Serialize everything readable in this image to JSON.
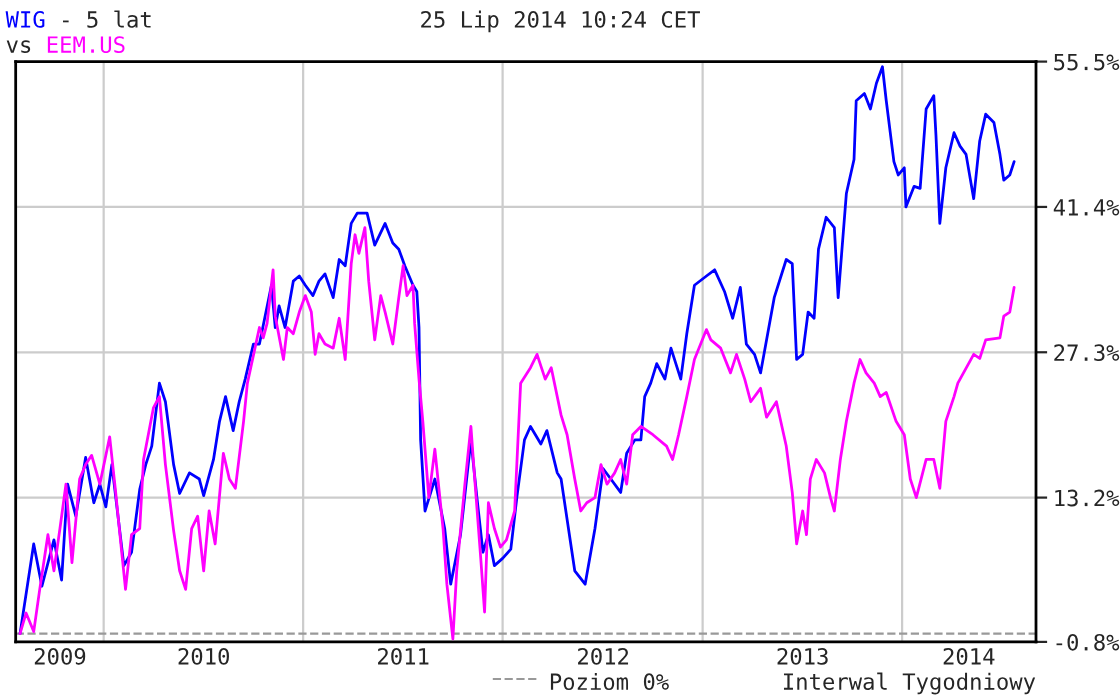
{
  "chart_data": {
    "type": "line",
    "title": "25 Lip 2014 10:24 CET",
    "series": [
      {
        "name": "WIG",
        "color": "#0000ff",
        "x": [
          "2009-08-01",
          "2009-08-26",
          "2009-09-10",
          "2009-10-02",
          "2009-10-16",
          "2009-10-27",
          "2009-11-11",
          "2009-11-29",
          "2009-12-14",
          "2009-12-25",
          "2010-01-05",
          "2010-01-16",
          "2010-02-07",
          "2010-02-21",
          "2010-03-08",
          "2010-03-19",
          "2010-03-30",
          "2010-04-13",
          "2010-04-24",
          "2010-05-09",
          "2010-05-20",
          "2010-06-07",
          "2010-06-25",
          "2010-07-03",
          "2010-07-21",
          "2010-08-01",
          "2010-08-12",
          "2010-08-26",
          "2010-09-06",
          "2010-09-17",
          "2010-10-02",
          "2010-10-13",
          "2010-11-04",
          "2010-11-11",
          "2010-11-18",
          "2010-11-29",
          "2010-12-14",
          "2010-12-25",
          "2011-01-05",
          "2011-01-19",
          "2011-01-30",
          "2011-02-10",
          "2011-02-25",
          "2011-03-08",
          "2011-03-19",
          "2011-03-30",
          "2011-04-10",
          "2011-04-28",
          "2011-05-12",
          "2011-05-31",
          "2011-06-14",
          "2011-06-25",
          "2011-07-06",
          "2011-07-21",
          "2011-07-28",
          "2011-08-01",
          "2011-08-04",
          "2011-08-12",
          "2011-08-30",
          "2011-09-17",
          "2011-09-28",
          "2011-10-16",
          "2011-11-04",
          "2011-11-15",
          "2011-11-26",
          "2011-12-06",
          "2011-12-17",
          "2012-01-01",
          "2012-01-16",
          "2012-01-27",
          "2012-02-10",
          "2012-02-21",
          "2012-03-11",
          "2012-03-22",
          "2012-04-10",
          "2012-04-17",
          "2012-05-12",
          "2012-05-31",
          "2012-06-18",
          "2012-07-03",
          "2012-07-17",
          "2012-08-04",
          "2012-08-15",
          "2012-08-30",
          "2012-09-10",
          "2012-09-17",
          "2012-09-28",
          "2012-10-09",
          "2012-10-24",
          "2012-11-04",
          "2012-11-22",
          "2012-12-03",
          "2012-12-17",
          "2013-01-08",
          "2013-01-23",
          "2013-02-10",
          "2013-02-25",
          "2013-03-11",
          "2013-03-22",
          "2013-04-06",
          "2013-04-17",
          "2013-05-12",
          "2013-06-03",
          "2013-06-14",
          "2013-06-22",
          "2013-07-03",
          "2013-07-13",
          "2013-07-24",
          "2013-08-01",
          "2013-08-15",
          "2013-08-30",
          "2013-09-06",
          "2013-09-21",
          "2013-10-05",
          "2013-10-09",
          "2013-10-24",
          "2013-11-04",
          "2013-11-15",
          "2013-11-26",
          "2013-12-03",
          "2013-12-17",
          "2013-12-25",
          "2014-01-05",
          "2014-01-08",
          "2014-01-23",
          "2014-02-03",
          "2014-02-14",
          "2014-02-28",
          "2014-03-04",
          "2014-03-11",
          "2014-03-22",
          "2014-04-06",
          "2014-04-17",
          "2014-04-28",
          "2014-05-12",
          "2014-05-23",
          "2014-06-03",
          "2014-06-18",
          "2014-06-29",
          "2014-07-06",
          "2014-07-17",
          "2014-07-25"
        ],
        "values": [
          0,
          8.7,
          4.6,
          9.1,
          5.2,
          14.5,
          11.4,
          17.1,
          12.7,
          14.5,
          12.3,
          16.4,
          6.6,
          7.9,
          14.0,
          16.4,
          18.2,
          24.3,
          22.5,
          16.4,
          13.6,
          15.6,
          15.0,
          13.4,
          16.9,
          20.6,
          23.0,
          19.7,
          22.5,
          24.7,
          28.1,
          28.1,
          33.8,
          29.7,
          31.8,
          29.7,
          34.2,
          34.7,
          33.8,
          32.8,
          34.2,
          34.9,
          32.6,
          36.3,
          35.7,
          39.8,
          40.8,
          40.8,
          37.7,
          39.8,
          37.9,
          37.3,
          35.7,
          33.8,
          33.2,
          29.7,
          18.8,
          11.9,
          15.0,
          10.2,
          4.8,
          9.6,
          18.8,
          13.2,
          7.9,
          9.6,
          6.6,
          7.3,
          8.2,
          13.2,
          18.8,
          20.1,
          18.4,
          19.7,
          15.6,
          15.0,
          6.1,
          4.8,
          10.2,
          16.0,
          15.0,
          13.7,
          17.5,
          18.8,
          18.8,
          23.0,
          24.3,
          26.2,
          24.7,
          27.7,
          24.7,
          29.1,
          33.8,
          34.7,
          35.3,
          33.2,
          30.6,
          33.6,
          28.1,
          27.1,
          25.3,
          32.6,
          36.3,
          35.9,
          26.6,
          27.1,
          31.2,
          30.6,
          37.3,
          40.4,
          39.4,
          32.6,
          42.7,
          46.0,
          51.7,
          52.4,
          50.9,
          53.4,
          55.0,
          51.7,
          45.8,
          44.5,
          45.2,
          41.4,
          43.4,
          43.2,
          50.9,
          52.2,
          48.3,
          39.8,
          45.2,
          48.6,
          47.3,
          46.5,
          42.2,
          47.8,
          50.4,
          49.6,
          46.5,
          44.0,
          44.5,
          45.8
        ]
      },
      {
        "name": "EEM.US",
        "color": "#ff00ff",
        "x": [
          "2009-08-01",
          "2009-08-12",
          "2009-08-26",
          "2009-09-06",
          "2009-09-21",
          "2009-10-02",
          "2009-10-13",
          "2009-10-24",
          "2009-11-04",
          "2009-11-18",
          "2009-11-29",
          "2009-12-10",
          "2009-12-25",
          "2010-01-12",
          "2010-01-23",
          "2010-02-03",
          "2010-02-10",
          "2010-02-21",
          "2010-03-08",
          "2010-03-15",
          "2010-04-02",
          "2010-04-13",
          "2010-04-24",
          "2010-05-09",
          "2010-05-20",
          "2010-05-31",
          "2010-06-11",
          "2010-06-22",
          "2010-07-03",
          "2010-07-13",
          "2010-07-24",
          "2010-08-08",
          "2010-08-19",
          "2010-08-30",
          "2010-09-14",
          "2010-09-21",
          "2010-10-13",
          "2010-10-20",
          "2010-10-27",
          "2010-11-07",
          "2010-11-11",
          "2010-11-26",
          "2010-12-03",
          "2010-12-14",
          "2010-12-25",
          "2011-01-05",
          "2011-01-16",
          "2011-01-23",
          "2011-01-30",
          "2011-02-10",
          "2011-02-25",
          "2011-03-08",
          "2011-03-19",
          "2011-03-30",
          "2011-04-06",
          "2011-04-13",
          "2011-04-24",
          "2011-05-01",
          "2011-05-12",
          "2011-05-23",
          "2011-05-31",
          "2011-06-14",
          "2011-06-25",
          "2011-07-03",
          "2011-07-10",
          "2011-07-21",
          "2011-07-24",
          "2011-08-01",
          "2011-08-08",
          "2011-08-19",
          "2011-08-30",
          "2011-09-14",
          "2011-09-21",
          "2011-10-02",
          "2011-10-09",
          "2011-10-24",
          "2011-11-04",
          "2011-11-11",
          "2011-11-22",
          "2011-11-29",
          "2011-12-06",
          "2011-12-17",
          "2011-12-28",
          "2012-01-08",
          "2012-01-23",
          "2012-02-03",
          "2012-02-21",
          "2012-03-04",
          "2012-03-19",
          "2012-03-30",
          "2012-04-17",
          "2012-04-28",
          "2012-05-12",
          "2012-05-23",
          "2012-06-03",
          "2012-06-18",
          "2012-06-29",
          "2012-07-10",
          "2012-07-24",
          "2012-08-04",
          "2012-08-15",
          "2012-08-26",
          "2012-09-10",
          "2012-10-02",
          "2012-10-27",
          "2012-11-07",
          "2012-11-18",
          "2012-12-03",
          "2012-12-17",
          "2013-01-08",
          "2013-01-16",
          "2013-02-03",
          "2013-02-21",
          "2013-03-04",
          "2013-03-19",
          "2013-03-30",
          "2013-04-17",
          "2013-04-28",
          "2013-05-16",
          "2013-06-03",
          "2013-06-14",
          "2013-06-22",
          "2013-07-03",
          "2013-07-10",
          "2013-07-17",
          "2013-07-28",
          "2013-08-12",
          "2013-08-23",
          "2013-08-30",
          "2013-09-10",
          "2013-09-21",
          "2013-10-05",
          "2013-10-16",
          "2013-10-27",
          "2013-11-11",
          "2013-11-22",
          "2013-12-03",
          "2013-12-21",
          "2014-01-05",
          "2014-01-16",
          "2014-01-27",
          "2014-02-14",
          "2014-02-28",
          "2014-03-11",
          "2014-03-22",
          "2014-04-06",
          "2014-04-13",
          "2014-05-12",
          "2014-05-23",
          "2014-06-03",
          "2014-06-29",
          "2014-07-06",
          "2014-07-17",
          "2014-07-25"
        ],
        "values": [
          0,
          2.0,
          0.2,
          4.3,
          9.6,
          6.1,
          10.2,
          14.5,
          6.9,
          15.0,
          16.4,
          17.3,
          14.5,
          19.1,
          13.7,
          7.9,
          4.3,
          9.6,
          10.2,
          16.9,
          21.9,
          23.0,
          16.4,
          10.0,
          6.1,
          4.3,
          10.2,
          11.4,
          6.1,
          11.9,
          8.7,
          17.5,
          15.0,
          14.1,
          20.6,
          24.3,
          29.7,
          28.7,
          30.1,
          35.3,
          30.8,
          26.6,
          29.7,
          29.1,
          31.2,
          32.8,
          31.2,
          27.1,
          29.1,
          28.1,
          27.7,
          30.6,
          26.6,
          35.9,
          38.7,
          36.9,
          39.4,
          34.2,
          28.5,
          32.8,
          31.2,
          28.1,
          32.6,
          35.7,
          32.8,
          33.8,
          30.1,
          24.7,
          20.6,
          13.2,
          17.9,
          10.2,
          4.8,
          -0.5,
          6.1,
          14.5,
          20.1,
          15.0,
          7.3,
          2.1,
          12.7,
          10.2,
          8.4,
          9.1,
          11.9,
          24.3,
          25.8,
          27.1,
          24.7,
          25.8,
          21.2,
          19.3,
          15.0,
          11.9,
          12.7,
          13.2,
          16.4,
          14.5,
          15.6,
          16.9,
          14.5,
          19.3,
          20.1,
          19.3,
          18.2,
          16.9,
          19.3,
          23.0,
          26.6,
          29.5,
          28.5,
          27.7,
          25.3,
          27.1,
          24.7,
          22.5,
          23.8,
          21.0,
          22.5,
          18.2,
          13.7,
          8.7,
          11.9,
          9.6,
          15.0,
          16.9,
          15.6,
          13.2,
          11.9,
          16.9,
          20.6,
          24.3,
          26.6,
          25.3,
          24.3,
          23.0,
          23.4,
          20.6,
          19.3,
          15.0,
          13.2,
          16.9,
          16.9,
          14.1,
          20.6,
          23.0,
          24.3,
          27.1,
          26.7,
          28.5,
          28.7,
          30.8,
          31.2,
          33.6
        ]
      }
    ],
    "xlim": [
      "2009-07-24",
      "2014-09-03"
    ],
    "xticks": [
      {
        "value": "2009-10-13",
        "label": "2009"
      },
      {
        "value": "2010-01-01",
        "label": null
      },
      {
        "value": "2010-07-03",
        "label": "2010"
      },
      {
        "value": "2011-01-01",
        "label": null
      },
      {
        "value": "2011-07-03",
        "label": "2011"
      },
      {
        "value": "2012-01-01",
        "label": null
      },
      {
        "value": "2012-07-03",
        "label": "2012"
      },
      {
        "value": "2013-01-01",
        "label": null
      },
      {
        "value": "2013-07-03",
        "label": "2013"
      },
      {
        "value": "2014-01-01",
        "label": null
      },
      {
        "value": "2014-05-03",
        "label": "2014"
      }
    ],
    "ylim": [
      -0.8,
      55.5
    ],
    "yticks": [
      {
        "value": -0.8,
        "label": "-0.8%"
      },
      {
        "value": 13.2,
        "label": "13.2%"
      },
      {
        "value": 27.3,
        "label": "27.3%"
      },
      {
        "value": 41.4,
        "label": "41.4%"
      },
      {
        "value": 55.5,
        "label": "55.5%"
      }
    ],
    "grid": true,
    "legend": "bottom",
    "line_style": "solid",
    "marker": "none",
    "ref_lines": [
      {
        "axis": "y",
        "value": 0,
        "label": "Poziom 0%",
        "color": "#999999",
        "line_style": "dashed"
      }
    ],
    "annotations": [
      "- 5 lat",
      "vs",
      "Interwal Tygodniowy"
    ]
  }
}
